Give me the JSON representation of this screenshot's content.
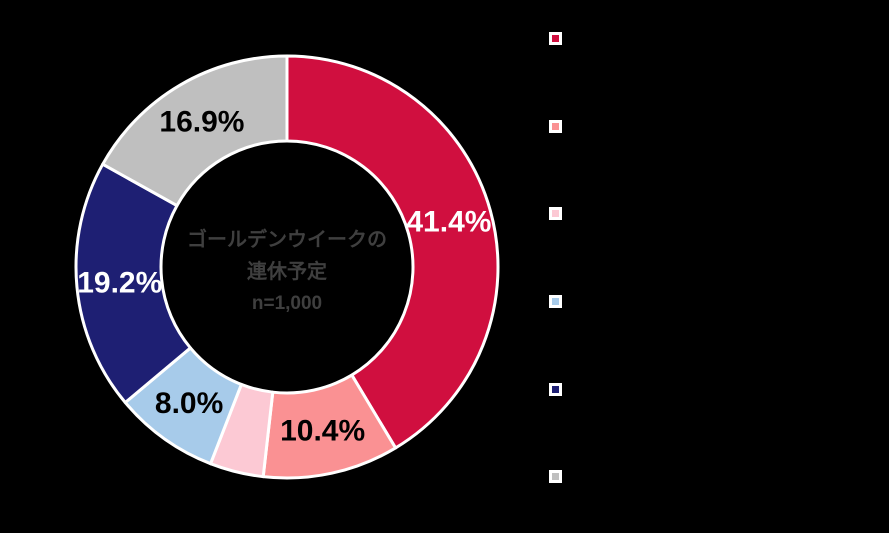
{
  "canvas": {
    "background": "#000000"
  },
  "chart_data": {
    "type": "pie",
    "subtype": "donut",
    "start_angle_deg": 0,
    "direction": "clockwise",
    "total": 100.0,
    "center_label": {
      "line1": "ゴールデンウイークの",
      "line2": "連休予定",
      "line3": "n=1,000",
      "color": "#3F3F3F"
    },
    "segments": [
      {
        "name": "segment-1",
        "value": 41.4,
        "label": "41.4%",
        "color": "#D00F3F",
        "label_color": "#FFFFFF",
        "label_visible": true
      },
      {
        "name": "segment-2",
        "value": 10.4,
        "label": "10.4%",
        "color": "#FA9193",
        "label_color": "#000000",
        "label_visible": true
      },
      {
        "name": "segment-3",
        "value": 4.1,
        "label": "",
        "color": "#FCC9D4",
        "label_color": "#000000",
        "label_visible": false
      },
      {
        "name": "segment-4",
        "value": 8.0,
        "label": "8.0%",
        "color": "#A7CBEA",
        "label_color": "#000000",
        "label_visible": true
      },
      {
        "name": "segment-5",
        "value": 19.2,
        "label": "19.2%",
        "color": "#1E1F73",
        "label_color": "#FFFFFF",
        "label_visible": true
      },
      {
        "name": "segment-6",
        "value": 16.9,
        "label": "16.9%",
        "color": "#BFBFBF",
        "label_color": "#000000",
        "label_visible": true
      }
    ],
    "legend": {
      "position": "right",
      "labels_visible": false,
      "marker_colors": [
        "#D00F3F",
        "#FA9193",
        "#FCC9D4",
        "#A7CBEA",
        "#1E1F73",
        "#BFBFBF"
      ]
    },
    "stroke_color": "#FFFFFF"
  }
}
